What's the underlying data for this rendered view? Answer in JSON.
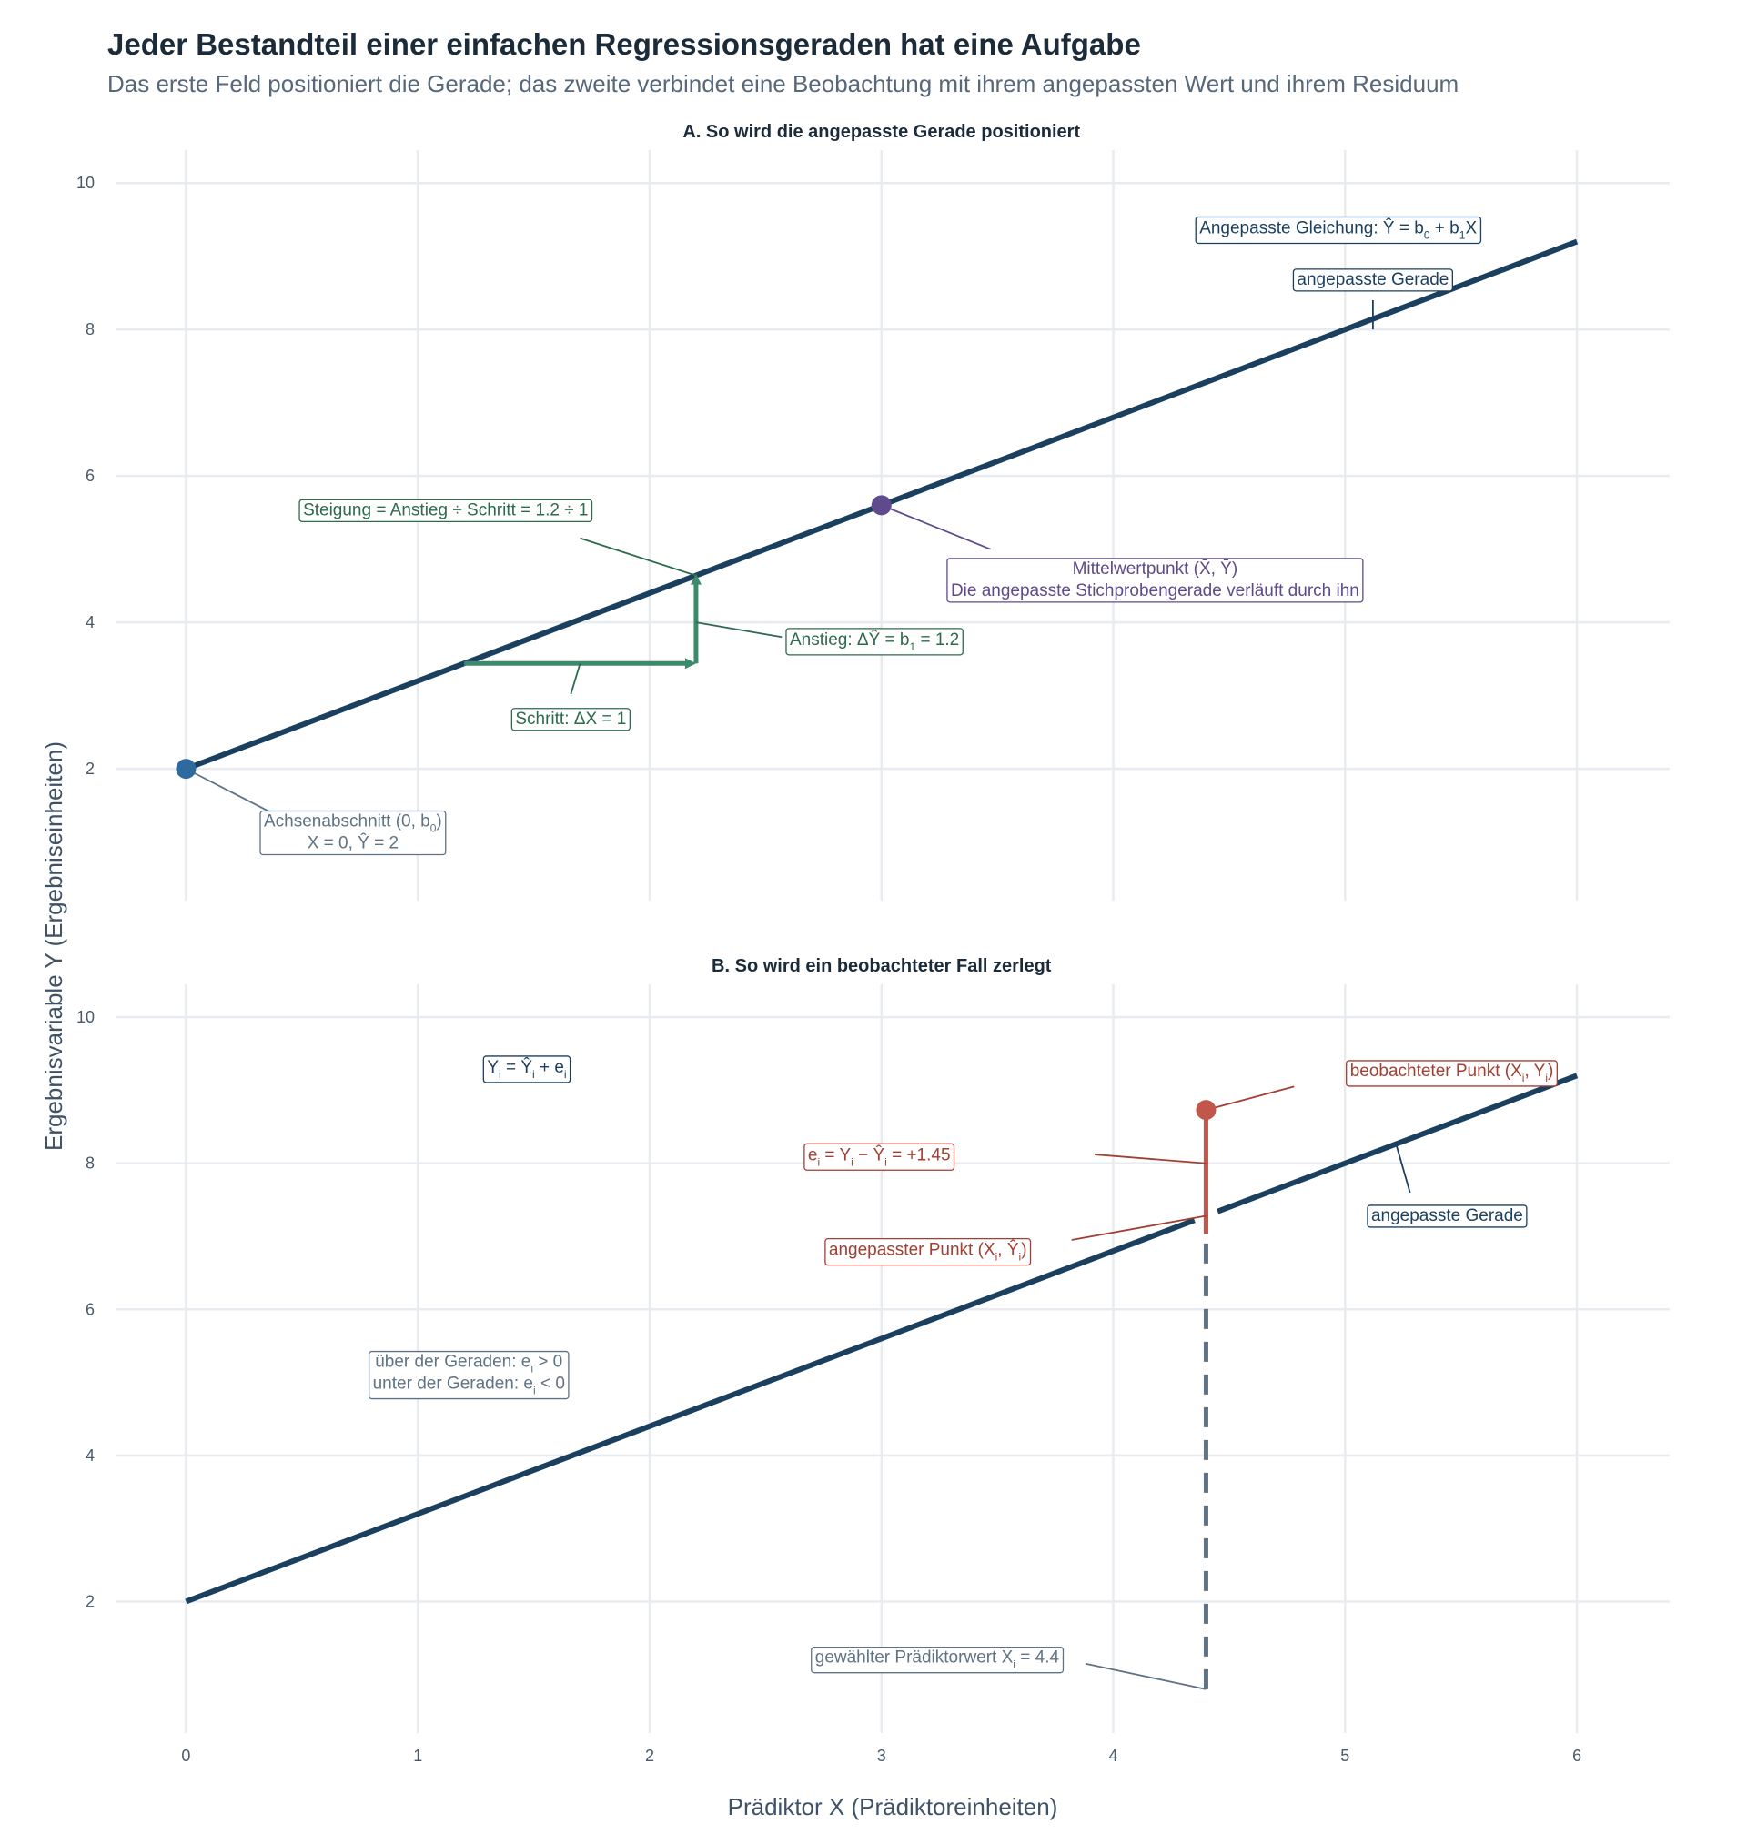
{
  "title": "Jeder Bestandteil einer einfachen Regressionsgeraden hat eine Aufgabe",
  "subtitle": "Das erste Feld positioniert die Gerade; das zweite verbindet eine Beobachtung mit ihrem angepassten Wert und ihrem Residuum",
  "xlabel": "Prädiktor X (Prädiktoreinheiten)",
  "ylabel": "Ergebnisvariable Y (Ergebniseinheiten)",
  "colors": {
    "line": "#1b3f5e",
    "intercept": "#2f6a9e",
    "mean": "#5e4a8c",
    "slope": "#3c8a6c",
    "slope_text": "#2e6a4e",
    "observed": "#c0574a",
    "observed_text": "#a33f32",
    "neutral": "#5f7384",
    "grid": "#e8ebef"
  },
  "chart_data": [
    {
      "panel": "A",
      "title": "A. So wird die angepasste Gerade positioniert",
      "type": "line",
      "xlim": [
        -0.3,
        6.4
      ],
      "ylim": [
        0.2,
        10.45
      ],
      "x_ticks": [
        "0",
        "1",
        "2",
        "3",
        "4",
        "5",
        "6"
      ],
      "y_ticks": [
        "2",
        "4",
        "6",
        "8",
        "10"
      ],
      "grid": true,
      "series": [
        {
          "x": [
            0,
            6
          ],
          "y": [
            2,
            9.2
          ]
        }
      ],
      "intercept": 2,
      "slope": 1.2,
      "points": [
        {
          "role": "intercept",
          "x": 0,
          "y": 2
        },
        {
          "role": "mean",
          "x": 3,
          "y": 5.6
        }
      ],
      "slope_triangle": {
        "x_start": 1.2,
        "x_end": 2.2,
        "y_start": 3.44,
        "y_end": 4.64
      },
      "annotations": {
        "equation": "Angepasste Gleichung: Ŷ = b₀ + b₁X",
        "fitted_line": "angepasste Gerade",
        "slope": "Steigung = Anstieg ÷ Schritt = 1.2 ÷ 1",
        "mean_line1": "Mittelwertpunkt (X̄, Ȳ)",
        "mean_line2": "Die angepasste Stichprobengerade verläuft durch ihn",
        "rise": "Anstieg: ΔŶ = b₁ = 1.2",
        "run": "Schritt: ΔX = 1",
        "intercept_line1": "Achsenabschnitt (0, b₀)",
        "intercept_line2": "X = 0, Ŷ = 2"
      }
    },
    {
      "panel": "B",
      "title": "B. So wird ein beobachteter Fall zerlegt",
      "type": "line",
      "xlim": [
        -0.3,
        6.4
      ],
      "ylim": [
        0.2,
        10.45
      ],
      "x_ticks": [
        "0",
        "1",
        "2",
        "3",
        "4",
        "5",
        "6"
      ],
      "y_ticks": [
        "2",
        "4",
        "6",
        "8",
        "10"
      ],
      "grid": true,
      "series": [
        {
          "x": [
            0,
            6
          ],
          "y": [
            2,
            9.2
          ]
        }
      ],
      "observed_point": {
        "x": 4.4,
        "y": 8.73
      },
      "fitted_point": {
        "x": 4.4,
        "y": 7.28
      },
      "residual": 1.45,
      "annotations": {
        "decomposition": "Yᵢ = Ŷᵢ + eᵢ",
        "observed": "beobachteter Punkt (Xᵢ, Yᵢ)",
        "residual": "eᵢ = Yᵢ − Ŷᵢ = +1.45",
        "fitted_line": "angepasste Gerade",
        "fitted_point": "angepasster Punkt (Xᵢ, Ŷᵢ)",
        "sign_line1": "über der Geraden: eᵢ > 0",
        "sign_line2": "unter der Geraden: eᵢ < 0",
        "predictor": "gewählter Prädiktorwert Xᵢ = 4.4"
      }
    }
  ]
}
